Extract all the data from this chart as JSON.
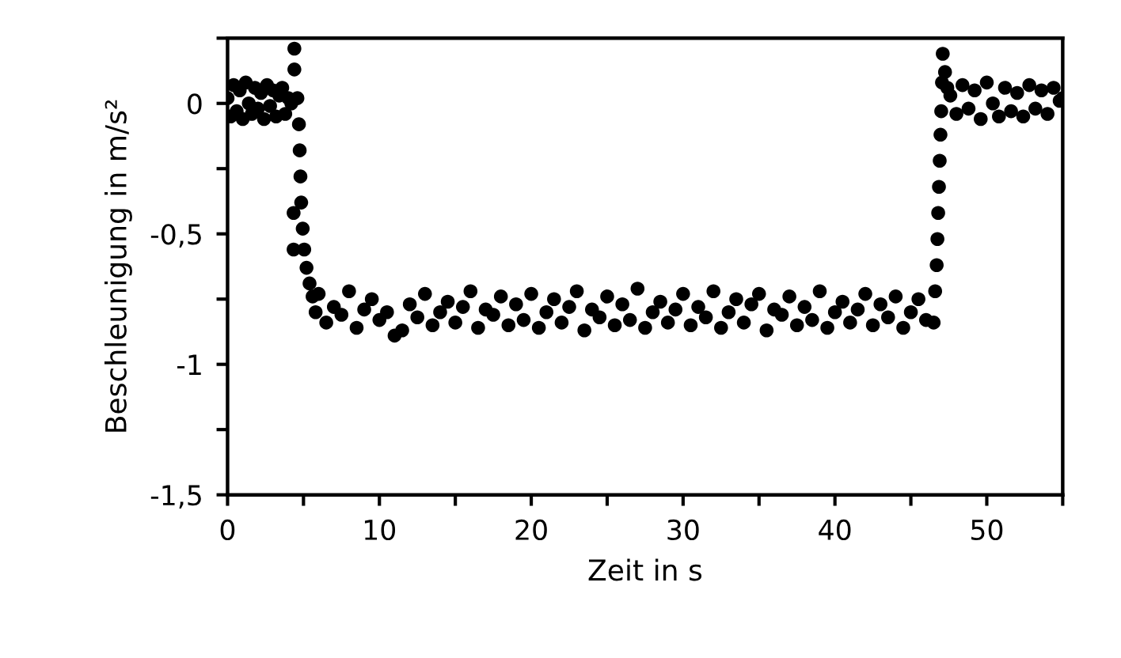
{
  "chart_data": {
    "type": "scatter",
    "xlabel": "Zeit in s",
    "ylabel": "Beschleunigung in m/s²",
    "color": "#000000",
    "marker": "circle",
    "grid": false,
    "legend": false,
    "xlim": [
      0,
      55
    ],
    "ylim": [
      -1.5,
      0.25
    ],
    "xticks": [
      0,
      {
        "value": 5,
        "label": null
      },
      10,
      {
        "value": 15,
        "label": null
      },
      20,
      {
        "value": 25,
        "label": null
      },
      30,
      {
        "value": 35,
        "label": null
      },
      40,
      {
        "value": 45,
        "label": null
      },
      50,
      {
        "value": 55,
        "label": null
      }
    ],
    "yticks": [
      {
        "value": -1.5,
        "label": "-1,5"
      },
      {
        "value": -1.25,
        "label": null
      },
      {
        "value": -1,
        "label": "-1"
      },
      {
        "value": -0.75,
        "label": null
      },
      {
        "value": -0.5,
        "label": "-0,5"
      },
      {
        "value": -0.25,
        "label": null
      },
      0,
      {
        "value": 0.25,
        "label": null
      }
    ],
    "x": [
      0.0,
      0.2,
      0.4,
      0.6,
      0.8,
      1.0,
      1.2,
      1.4,
      1.6,
      1.8,
      2.0,
      2.2,
      2.4,
      2.6,
      2.8,
      3.0,
      3.2,
      3.4,
      3.6,
      3.8,
      4.0,
      4.2,
      4.4,
      4.4,
      4.35,
      4.35,
      4.6,
      4.7,
      4.75,
      4.8,
      4.85,
      4.95,
      5.05,
      5.2,
      5.4,
      5.6,
      5.8,
      6.0,
      6.5,
      7.0,
      7.5,
      8.0,
      8.5,
      9.0,
      9.5,
      10.0,
      10.5,
      11.0,
      11.5,
      12.0,
      12.5,
      13.0,
      13.5,
      14.0,
      14.5,
      15.0,
      15.5,
      16.0,
      16.5,
      17.0,
      17.5,
      18.0,
      18.5,
      19.0,
      19.5,
      20.0,
      20.5,
      21.0,
      21.5,
      22.0,
      22.5,
      23.0,
      23.5,
      24.0,
      24.5,
      25.0,
      25.5,
      26.0,
      26.5,
      27.0,
      27.5,
      28.0,
      28.5,
      29.0,
      29.5,
      30.0,
      30.5,
      31.0,
      31.5,
      32.0,
      32.5,
      33.0,
      33.5,
      34.0,
      34.5,
      35.0,
      35.5,
      36.0,
      36.5,
      37.0,
      37.5,
      38.0,
      38.5,
      39.0,
      39.5,
      40.0,
      40.5,
      41.0,
      41.5,
      42.0,
      42.5,
      43.0,
      43.5,
      44.0,
      44.5,
      45.0,
      45.5,
      46.0,
      46.5,
      46.6,
      46.7,
      46.75,
      46.8,
      46.85,
      46.9,
      46.95,
      47.0,
      47.05,
      47.1,
      47.25,
      47.4,
      47.6,
      48.0,
      48.4,
      48.8,
      49.2,
      49.6,
      50.0,
      50.4,
      50.8,
      51.2,
      51.6,
      52.0,
      52.4,
      52.8,
      53.2,
      53.6,
      54.0,
      54.4,
      54.8,
      55.0
    ],
    "values": [
      0.02,
      -0.05,
      0.07,
      -0.03,
      0.05,
      -0.06,
      0.08,
      0.0,
      -0.04,
      0.06,
      -0.02,
      0.04,
      -0.06,
      0.07,
      -0.01,
      0.05,
      -0.05,
      0.03,
      0.06,
      -0.04,
      0.02,
      0.0,
      0.21,
      0.13,
      -0.42,
      -0.56,
      0.02,
      -0.08,
      -0.18,
      -0.28,
      -0.38,
      -0.48,
      -0.56,
      -0.63,
      -0.69,
      -0.74,
      -0.8,
      -0.73,
      -0.84,
      -0.78,
      -0.81,
      -0.72,
      -0.86,
      -0.79,
      -0.75,
      -0.83,
      -0.8,
      -0.89,
      -0.87,
      -0.77,
      -0.82,
      -0.73,
      -0.85,
      -0.8,
      -0.76,
      -0.84,
      -0.78,
      -0.72,
      -0.86,
      -0.79,
      -0.81,
      -0.74,
      -0.85,
      -0.77,
      -0.83,
      -0.73,
      -0.86,
      -0.8,
      -0.75,
      -0.84,
      -0.78,
      -0.72,
      -0.87,
      -0.79,
      -0.82,
      -0.74,
      -0.85,
      -0.77,
      -0.83,
      -0.71,
      -0.86,
      -0.8,
      -0.76,
      -0.84,
      -0.79,
      -0.73,
      -0.85,
      -0.78,
      -0.82,
      -0.72,
      -0.86,
      -0.8,
      -0.75,
      -0.84,
      -0.77,
      -0.73,
      -0.87,
      -0.79,
      -0.81,
      -0.74,
      -0.85,
      -0.78,
      -0.83,
      -0.72,
      -0.86,
      -0.8,
      -0.76,
      -0.84,
      -0.79,
      -0.73,
      -0.85,
      -0.77,
      -0.82,
      -0.74,
      -0.86,
      -0.8,
      -0.75,
      -0.83,
      -0.84,
      -0.72,
      -0.62,
      -0.52,
      -0.42,
      -0.32,
      -0.22,
      -0.12,
      -0.03,
      0.08,
      0.19,
      0.12,
      0.06,
      0.03,
      -0.04,
      0.07,
      -0.02,
      0.05,
      -0.06,
      0.08,
      0.0,
      -0.05,
      0.06,
      -0.03,
      0.04,
      -0.05,
      0.07,
      -0.02,
      0.05,
      -0.04,
      0.06,
      0.01,
      0.02
    ]
  }
}
